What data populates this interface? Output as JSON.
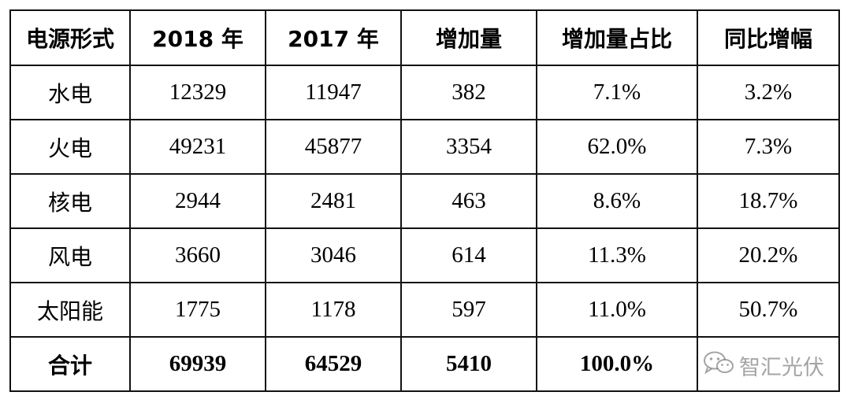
{
  "chart_data": {
    "type": "table",
    "columns": [
      "电源形式",
      "2018 年",
      "2017 年",
      "增加量",
      "增加量占比",
      "同比增幅"
    ],
    "rows": [
      [
        "水电",
        "12329",
        "11947",
        "382",
        "7.1%",
        "3.2%"
      ],
      [
        "火电",
        "49231",
        "45877",
        "3354",
        "62.0%",
        "7.3%"
      ],
      [
        "核电",
        "2944",
        "2481",
        "463",
        "8.6%",
        "18.7%"
      ],
      [
        "风电",
        "3660",
        "3046",
        "614",
        "11.3%",
        "20.2%"
      ],
      [
        "太阳能",
        "1775",
        "1178",
        "597",
        "11.0%",
        "50.7%"
      ],
      [
        "合计",
        "69939",
        "64529",
        "5410",
        "100.0%",
        ""
      ]
    ]
  },
  "watermark": {
    "text": "智汇光伏",
    "icon": "wechat-icon"
  }
}
